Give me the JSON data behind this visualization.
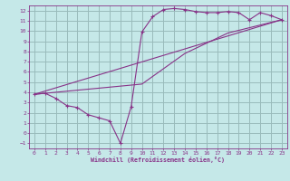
{
  "xlabel": "Windchill (Refroidissement éolien,°C)",
  "xlim": [
    -0.5,
    23.5
  ],
  "ylim": [
    -1.5,
    12.5
  ],
  "xticks": [
    0,
    1,
    2,
    3,
    4,
    5,
    6,
    7,
    8,
    9,
    10,
    11,
    12,
    13,
    14,
    15,
    16,
    17,
    18,
    19,
    20,
    21,
    22,
    23
  ],
  "yticks": [
    -1,
    0,
    1,
    2,
    3,
    4,
    5,
    6,
    7,
    8,
    9,
    10,
    11,
    12
  ],
  "bg_color": "#c5e8e8",
  "line_color": "#883388",
  "grid_color": "#99bbbb",
  "series1_x": [
    0,
    1,
    2,
    3,
    4,
    5,
    6,
    7,
    8,
    9,
    10,
    11,
    12,
    13,
    14,
    15,
    16,
    17,
    18,
    19,
    20,
    21,
    22,
    23
  ],
  "series1_y": [
    3.8,
    3.9,
    3.4,
    2.7,
    2.5,
    1.8,
    1.5,
    1.2,
    -1.0,
    2.6,
    9.9,
    11.4,
    12.1,
    12.2,
    12.1,
    11.9,
    11.8,
    11.8,
    11.9,
    11.8,
    11.1,
    11.8,
    11.5,
    11.1
  ],
  "series2_x": [
    0,
    23
  ],
  "series2_y": [
    3.8,
    11.1
  ],
  "series3_x": [
    0,
    10,
    14,
    18,
    23
  ],
  "series3_y": [
    3.8,
    4.8,
    7.8,
    9.8,
    11.1
  ]
}
